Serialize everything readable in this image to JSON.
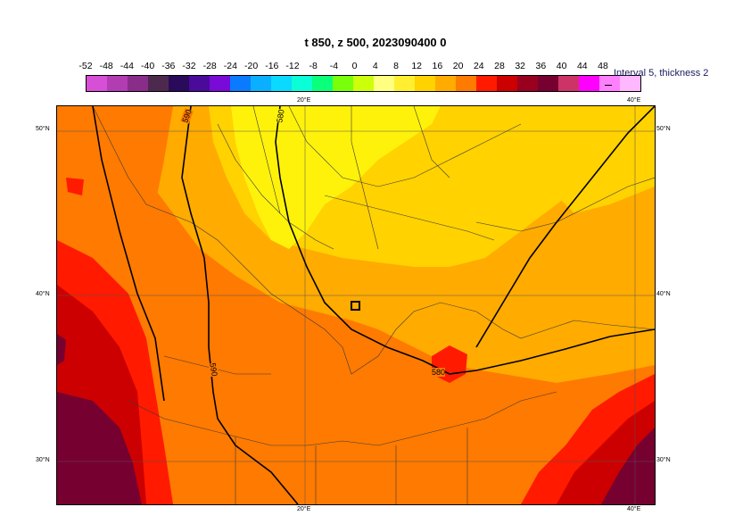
{
  "title": "t 850, z 500, 2023090400 0",
  "colorbar": {
    "labels": [
      "-52",
      "-48",
      "-44",
      "-40",
      "-36",
      "-32",
      "-28",
      "-24",
      "-20",
      "-16",
      "-12",
      "-8",
      "-4",
      "0",
      "4",
      "8",
      "12",
      "16",
      "20",
      "24",
      "28",
      "32",
      "36",
      "40",
      "44",
      "48"
    ],
    "colors": [
      "#d64fd6",
      "#b23cb2",
      "#8a2d8a",
      "#4d2a4d",
      "#2a0a5a",
      "#4a0a9a",
      "#7a0ad8",
      "#0a7aff",
      "#0ab0ff",
      "#0adaff",
      "#0affd8",
      "#0aff7a",
      "#7aff0a",
      "#ccff0a",
      "#ffff80",
      "#ffef30",
      "#ffd200",
      "#ffab00",
      "#ff7a00",
      "#ff1a00",
      "#cc0000",
      "#990020",
      "#760030",
      "#cc3366",
      "#ff00ff",
      "#ff80ff",
      "#ffb8ff"
    ],
    "interval_label": "Interval 5, thickness 2"
  },
  "map": {
    "lat_labels": [
      "50°N",
      "40°N",
      "30°N"
    ],
    "lon_labels": [
      "20°E",
      "40°E"
    ],
    "contour_labels": [
      "590",
      "580",
      "590",
      "580"
    ],
    "fill_colors": {
      "yellow_light": "#fff20a",
      "yellow": "#ffd200",
      "orange_light": "#ffab00",
      "orange": "#ff7a00",
      "red": "#ff1a00",
      "dark_red": "#cc0000",
      "maroon": "#760030"
    }
  }
}
